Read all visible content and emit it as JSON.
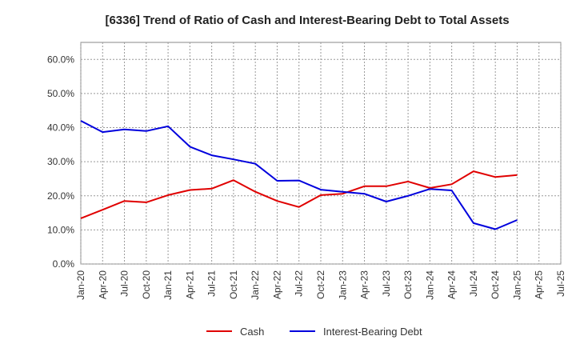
{
  "chart_data": {
    "type": "line",
    "title": "[6336]  Trend of Ratio of Cash and Interest-Bearing Debt to Total Assets",
    "xlabel": "",
    "ylabel": "",
    "ylim": [
      0,
      65
    ],
    "y_ticks": [
      "0.0%",
      "10.0%",
      "20.0%",
      "30.0%",
      "40.0%",
      "50.0%",
      "60.0%"
    ],
    "y_tick_values": [
      0,
      10,
      20,
      30,
      40,
      50,
      60
    ],
    "x": [
      "Jan-20",
      "Apr-20",
      "Jul-20",
      "Oct-20",
      "Jan-21",
      "Apr-21",
      "Jul-21",
      "Oct-21",
      "Jan-22",
      "Apr-22",
      "Jul-22",
      "Oct-22",
      "Jan-23",
      "Apr-23",
      "Jul-23",
      "Oct-23",
      "Jan-24",
      "Apr-24",
      "Jul-24",
      "Oct-24",
      "Jan-25"
    ],
    "x_ticks": [
      "Jan-20",
      "Apr-20",
      "Jul-20",
      "Oct-20",
      "Jan-21",
      "Apr-21",
      "Jul-21",
      "Oct-21",
      "Jan-22",
      "Apr-22",
      "Jul-22",
      "Oct-22",
      "Jan-23",
      "Apr-23",
      "Jul-23",
      "Oct-23",
      "Jan-24",
      "Apr-24",
      "Jul-24",
      "Oct-24",
      "Jan-25",
      "Apr-25",
      "Jul-25"
    ],
    "series": [
      {
        "name": "Cash",
        "color": "#e00000",
        "values": [
          13.4,
          15.9,
          18.5,
          18.1,
          20.2,
          21.7,
          22.1,
          24.6,
          21.2,
          18.5,
          16.7,
          20.2,
          20.6,
          22.8,
          22.8,
          24.2,
          22.3,
          23.4,
          27.2,
          25.5,
          26.1
        ]
      },
      {
        "name": "Interest-Bearing Debt",
        "color": "#0000dd",
        "values": [
          42.0,
          38.7,
          39.5,
          39.0,
          40.4,
          34.4,
          31.9,
          30.7,
          29.4,
          24.4,
          24.5,
          21.8,
          21.2,
          20.6,
          18.3,
          20.0,
          22.0,
          21.6,
          12.0,
          10.2,
          12.9
        ]
      }
    ],
    "grid": true,
    "legend_position": "bottom-center"
  }
}
